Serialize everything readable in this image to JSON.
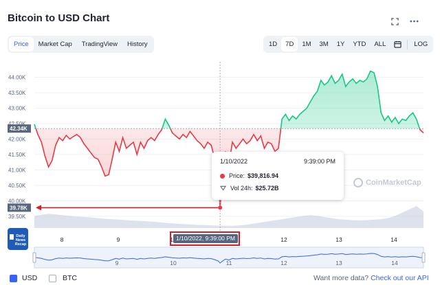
{
  "header": {
    "title": "Bitcoin to USD Chart",
    "expand_icon": "expand-icon",
    "more_icon": "more-icon"
  },
  "tabs": [
    {
      "label": "Price",
      "active": true
    },
    {
      "label": "Market Cap",
      "active": false
    },
    {
      "label": "TradingView",
      "active": false
    },
    {
      "label": "History",
      "active": false
    }
  ],
  "ranges": [
    {
      "label": "1D",
      "active": false
    },
    {
      "label": "7D",
      "active": true
    },
    {
      "label": "1M",
      "active": false
    },
    {
      "label": "3M",
      "active": false
    },
    {
      "label": "1Y",
      "active": false
    },
    {
      "label": "YTD",
      "active": false
    },
    {
      "label": "ALL",
      "active": false
    }
  ],
  "log_label": "LOG",
  "colors": {
    "up": "#16c784",
    "down": "#ea3943",
    "accent": "#3861fb",
    "annotation": "#d61f24"
  },
  "chart_data": {
    "type": "line",
    "title": "Bitcoin to USD Chart",
    "y_tick_labels": [
      "44.00K",
      "43.50K",
      "43.00K",
      "42.50K",
      "42.00K",
      "41.50K",
      "41.00K",
      "40.50K",
      "40.00K",
      "39.50K"
    ],
    "ylim": [
      39500,
      44500
    ],
    "x_tick_labels": [
      "8",
      "9",
      "10",
      "11",
      "12",
      "13",
      "14"
    ],
    "reference_price": 42340,
    "reference_label": "42.34K",
    "cursor_price_label": "39.78K",
    "series": [
      {
        "points": [
          [
            0,
            42480
          ],
          [
            2,
            42150
          ],
          [
            4,
            41900
          ],
          [
            6,
            41450
          ],
          [
            8,
            41100
          ],
          [
            10,
            41300
          ],
          [
            12,
            41800
          ],
          [
            14,
            42050
          ],
          [
            16,
            41950
          ],
          [
            18,
            42120
          ],
          [
            20,
            42000
          ],
          [
            22,
            42080
          ],
          [
            24,
            42150
          ],
          [
            26,
            42050
          ],
          [
            28,
            41850
          ],
          [
            30,
            41700
          ],
          [
            32,
            41550
          ],
          [
            34,
            41400
          ],
          [
            36,
            41350
          ],
          [
            38,
            41100
          ],
          [
            40,
            40800
          ],
          [
            42,
            40850
          ],
          [
            44,
            41350
          ],
          [
            46,
            41900
          ],
          [
            48,
            41600
          ],
          [
            50,
            42050
          ],
          [
            52,
            41700
          ],
          [
            54,
            41800
          ],
          [
            56,
            41900
          ],
          [
            58,
            41500
          ],
          [
            60,
            41900
          ],
          [
            62,
            41700
          ],
          [
            64,
            41950
          ],
          [
            66,
            42050
          ],
          [
            68,
            41950
          ],
          [
            70,
            42150
          ],
          [
            72,
            42300
          ],
          [
            74,
            42650
          ],
          [
            76,
            42450
          ],
          [
            78,
            42200
          ],
          [
            80,
            42100
          ],
          [
            82,
            42000
          ],
          [
            84,
            42150
          ],
          [
            86,
            42050
          ],
          [
            88,
            42250
          ],
          [
            90,
            42100
          ],
          [
            92,
            41950
          ],
          [
            94,
            41850
          ],
          [
            96,
            41700
          ],
          [
            98,
            41900
          ],
          [
            100,
            41800
          ],
          [
            102,
            41350
          ],
          [
            104,
            40700
          ],
          [
            105,
            39780
          ],
          [
            106,
            40500
          ],
          [
            108,
            41600
          ],
          [
            110,
            41200
          ],
          [
            112,
            41900
          ],
          [
            114,
            41700
          ],
          [
            116,
            41850
          ],
          [
            118,
            42000
          ],
          [
            120,
            41850
          ],
          [
            122,
            41950
          ],
          [
            124,
            42150
          ],
          [
            126,
            41950
          ],
          [
            128,
            42100
          ],
          [
            130,
            41700
          ],
          [
            132,
            41900
          ],
          [
            134,
            41850
          ],
          [
            136,
            41600
          ],
          [
            138,
            41700
          ],
          [
            140,
            42650
          ],
          [
            142,
            42800
          ],
          [
            144,
            42600
          ],
          [
            146,
            42750
          ],
          [
            148,
            42650
          ],
          [
            150,
            42800
          ],
          [
            152,
            42900
          ],
          [
            154,
            43000
          ],
          [
            156,
            43200
          ],
          [
            158,
            43400
          ],
          [
            160,
            43550
          ],
          [
            162,
            43900
          ],
          [
            164,
            43750
          ],
          [
            166,
            43850
          ],
          [
            168,
            44050
          ],
          [
            170,
            43800
          ],
          [
            172,
            43900
          ],
          [
            174,
            44100
          ],
          [
            176,
            43700
          ],
          [
            178,
            43850
          ],
          [
            180,
            43950
          ],
          [
            182,
            43800
          ],
          [
            184,
            43900
          ],
          [
            186,
            43850
          ],
          [
            188,
            43950
          ],
          [
            190,
            44200
          ],
          [
            192,
            44150
          ],
          [
            194,
            43700
          ],
          [
            196,
            42850
          ],
          [
            198,
            42600
          ],
          [
            200,
            42750
          ],
          [
            202,
            42550
          ],
          [
            204,
            42700
          ],
          [
            206,
            42500
          ],
          [
            208,
            42650
          ],
          [
            210,
            42600
          ],
          [
            212,
            42750
          ],
          [
            214,
            42850
          ],
          [
            216,
            42650
          ],
          [
            218,
            42300
          ],
          [
            220,
            42200
          ]
        ]
      }
    ],
    "volume": [
      0.55,
      0.6,
      0.65,
      0.62,
      0.58,
      0.55,
      0.52,
      0.5,
      0.48,
      0.45,
      0.42,
      0.4,
      0.38,
      0.36,
      0.34,
      0.32,
      0.3,
      0.28,
      0.25,
      0.22,
      0.2,
      0.18,
      0.16,
      0.14,
      0.13,
      0.12,
      0.11,
      0.1,
      0.1,
      0.12,
      0.15,
      0.2,
      0.25,
      0.3,
      0.35,
      0.4,
      0.45,
      0.5,
      0.55,
      0.58,
      0.55,
      0.5,
      0.45,
      0.4,
      0.38,
      0.36,
      0.35,
      0.36,
      0.38,
      0.4,
      0.45,
      0.55,
      0.7,
      0.85,
      1.0,
      0.75
    ],
    "hover": {
      "date": "1/10/2022",
      "time": "9:39:00 PM",
      "price_label": "Price:",
      "price_value": "$39,816.94",
      "vol_label": "Vol 24h:",
      "vol_value": "$25.72B",
      "axis_label": "1/10/2022, 9:39:00 PM"
    },
    "navigator_tick_labels": [
      "9",
      "10",
      "11",
      "12",
      "13",
      "14"
    ],
    "watermark": "CoinMarketCap"
  },
  "news_badge": {
    "line1": "Daily",
    "line2": "News",
    "line3": "Recap"
  },
  "footer": {
    "usd_label": "USD",
    "btc_label": "BTC",
    "want_more": "Want more data?",
    "api_link": "Check out our API"
  }
}
